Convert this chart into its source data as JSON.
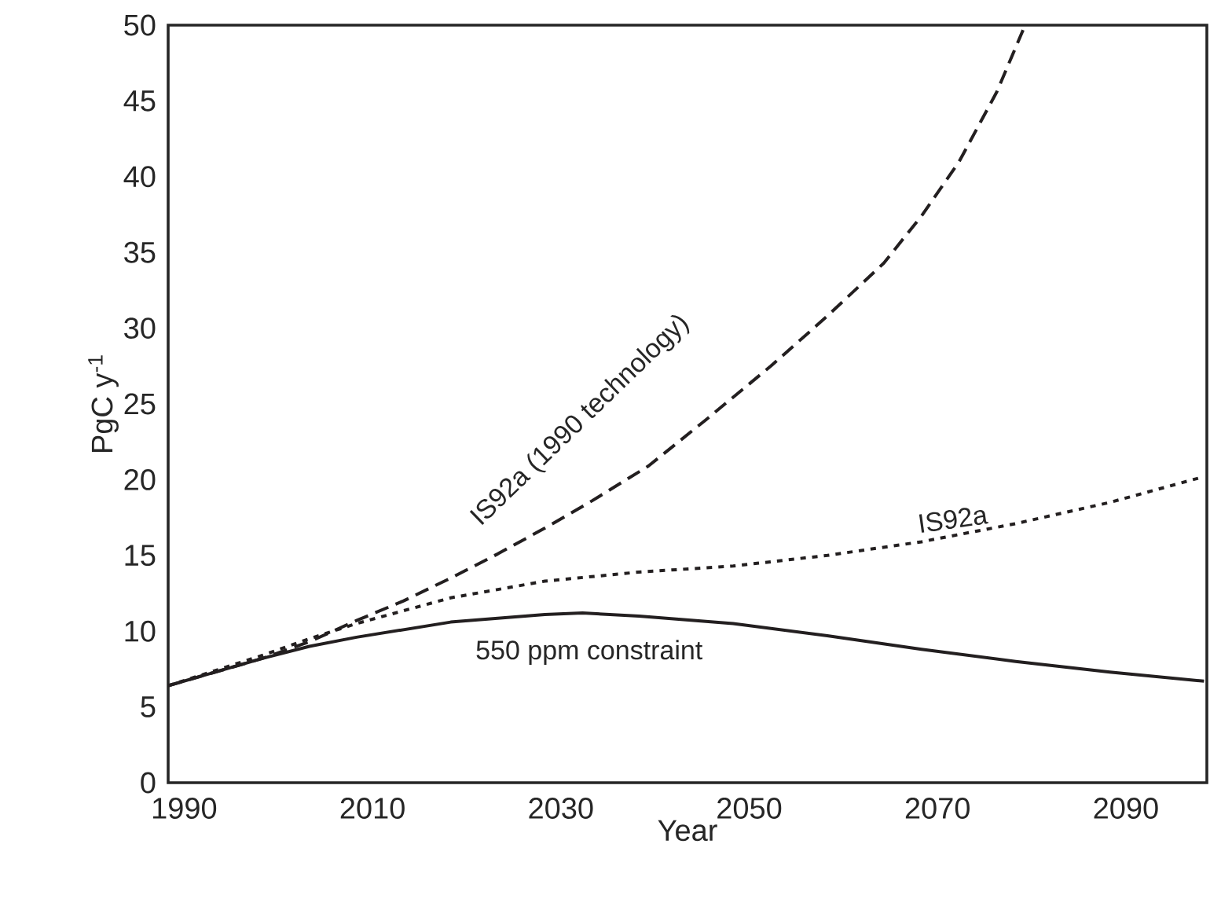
{
  "chart_data": {
    "type": "line",
    "xlabel": "Year",
    "ylabel": "PgC y$^{-1}$",
    "xlim": [
      1988.3,
      2098.6
    ],
    "ylim": [
      0,
      50
    ],
    "xticks": [
      1990,
      2010,
      2030,
      2050,
      2070,
      2090
    ],
    "yticks": [
      0,
      5,
      10,
      15,
      20,
      25,
      30,
      35,
      40,
      45,
      50
    ],
    "series": [
      {
        "color": "#231f20",
        "line_style": "dashed",
        "x": [
          1988.3,
          1993.3,
          1998.3,
          2003.3,
          2008.3,
          2013.3,
          2018.3,
          2023.3,
          2028.3,
          2033.3,
          2039.3,
          2045.3,
          2052.3,
          2058.3,
          2064.3,
          2068.3,
          2072.3,
          2076.3,
          2079.3
        ],
        "values": [
          6.4,
          7.3,
          8.2,
          9.3,
          10.7,
          12,
          13.5,
          15.1,
          16.8,
          18.6,
          20.9,
          23.9,
          27.5,
          30.8,
          34.3,
          37.4,
          41,
          45.6,
          50
        ]
      },
      {
        "color": "#231f20",
        "line_style": "dotted",
        "x": [
          1988.3,
          1993.3,
          1998.3,
          2003.3,
          2008.3,
          2018.3,
          2028.3,
          2038.3,
          2048.3,
          2058.3,
          2068.3,
          2078.3,
          2088.3,
          2098.3
        ],
        "values": [
          6.4,
          7.4,
          8.4,
          9.5,
          10.5,
          12.2,
          13.3,
          13.9,
          14.3,
          15,
          15.9,
          17.1,
          18.5,
          20.2
        ]
      },
      {
        "color": "#231f20",
        "line_style": "solid",
        "x": [
          1988.3,
          1993.3,
          1998.3,
          2003.3,
          2008.3,
          2018.3,
          2028.3,
          2032.3,
          2038.3,
          2048.3,
          2058.3,
          2068.3,
          2078.3,
          2088.3,
          2098.3
        ],
        "values": [
          6.4,
          7.3,
          8.2,
          9,
          9.6,
          10.6,
          11.1,
          11.2,
          11,
          10.5,
          9.7,
          8.8,
          8,
          7.3,
          6.7
        ]
      }
    ],
    "annotations": [
      "IS92a (1990 technology)",
      "IS92a",
      "550 ppm constraint"
    ]
  }
}
